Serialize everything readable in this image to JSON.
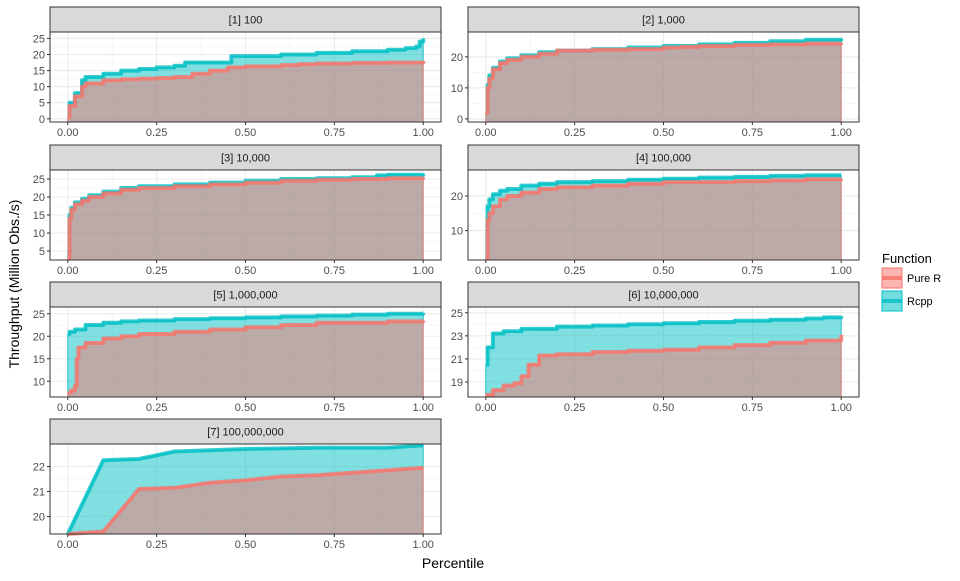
{
  "chart_data": {
    "type": "area",
    "xlabel": "Percentile",
    "ylabel": "Throughput (Million Obs./s)",
    "legend": {
      "title": "Function",
      "placement": "right",
      "entries": [
        {
          "name": "Pure R",
          "color": "#F8766D"
        },
        {
          "name": "Rcpp",
          "color": "#00BFC4"
        }
      ]
    },
    "x_ticks": [
      {
        "value": 0,
        "label": "0.00"
      },
      {
        "value": 0.25,
        "label": "0.25"
      },
      {
        "value": 0.5,
        "label": "0.50"
      },
      {
        "value": 0.75,
        "label": "0.75"
      },
      {
        "value": 1,
        "label": "1.00"
      }
    ],
    "grid": true,
    "panels": [
      {
        "title": "[1] 100",
        "xlim": [
          -0.05,
          1.05
        ],
        "ylim": [
          -1,
          27
        ],
        "y_ticks": [
          {
            "value": 0,
            "label": "0"
          },
          {
            "value": 5,
            "label": "5"
          },
          {
            "value": 10,
            "label": "10"
          },
          {
            "value": 15,
            "label": "15"
          },
          {
            "value": 20,
            "label": "20"
          },
          {
            "value": 25,
            "label": "25"
          }
        ],
        "series": [
          {
            "name": "Rcpp",
            "x": [
              0,
              0.005,
              0.02,
              0.04,
              0.05,
              0.1,
              0.15,
              0.2,
              0.25,
              0.3,
              0.33,
              0.4,
              0.45,
              0.46,
              0.5,
              0.6,
              0.7,
              0.8,
              0.9,
              0.95,
              0.98,
              0.99,
              1
            ],
            "y": [
              1,
              5,
              8,
              12,
              13,
              14,
              15,
              15.5,
              16,
              16.5,
              17.5,
              17.5,
              17.5,
              19.5,
              19.5,
              20,
              20.5,
              21,
              21.5,
              22,
              22.5,
              24,
              25
            ]
          },
          {
            "name": "Pure R",
            "x": [
              0,
              0.005,
              0.02,
              0.04,
              0.05,
              0.1,
              0.15,
              0.2,
              0.25,
              0.3,
              0.35,
              0.4,
              0.45,
              0.5,
              0.6,
              0.65,
              0.7,
              0.8,
              0.9,
              1
            ],
            "y": [
              0.5,
              4,
              7,
              10,
              11,
              12,
              12.3,
              12.5,
              12.7,
              13,
              14,
              15,
              16,
              16.3,
              16.7,
              17,
              17.2,
              17.4,
              17.5,
              18
            ]
          }
        ]
      },
      {
        "title": "[2] 1,000",
        "xlim": [
          -0.05,
          1.05
        ],
        "ylim": [
          -1,
          28
        ],
        "y_ticks": [
          {
            "value": 0,
            "label": "0"
          },
          {
            "value": 10,
            "label": "10"
          },
          {
            "value": 20,
            "label": "20"
          }
        ],
        "series": [
          {
            "name": "Rcpp",
            "x": [
              0,
              0.005,
              0.01,
              0.02,
              0.04,
              0.06,
              0.1,
              0.15,
              0.2,
              0.3,
              0.4,
              0.5,
              0.6,
              0.7,
              0.8,
              0.9,
              1
            ],
            "y": [
              2,
              11,
              14,
              16.5,
              18.5,
              19.5,
              20.5,
              21.5,
              22,
              22.5,
              23,
              23.5,
              24,
              24.5,
              25,
              25.5,
              26
            ]
          },
          {
            "name": "Pure R",
            "x": [
              0,
              0.005,
              0.01,
              0.02,
              0.04,
              0.06,
              0.1,
              0.15,
              0.2,
              0.3,
              0.4,
              0.5,
              0.55,
              0.6,
              0.7,
              0.8,
              0.9,
              1
            ],
            "y": [
              2,
              10,
              13,
              16,
              18,
              19,
              20,
              21,
              22,
              22.3,
              22.5,
              23,
              23.2,
              23.5,
              23.8,
              24,
              24.3,
              24.5
            ]
          }
        ]
      },
      {
        "title": "[3] 10,000",
        "xlim": [
          -0.05,
          1.05
        ],
        "ylim": [
          2.5,
          27.5
        ],
        "y_ticks": [
          {
            "value": 5,
            "label": "5"
          },
          {
            "value": 10,
            "label": "10"
          },
          {
            "value": 15,
            "label": "15"
          },
          {
            "value": 20,
            "label": "20"
          },
          {
            "value": 25,
            "label": "25"
          }
        ],
        "series": [
          {
            "name": "Rcpp",
            "x": [
              0,
              0.005,
              0.01,
              0.02,
              0.04,
              0.06,
              0.1,
              0.15,
              0.2,
              0.3,
              0.4,
              0.5,
              0.6,
              0.7,
              0.8,
              0.87,
              0.9,
              1
            ],
            "y": [
              5,
              15,
              17,
              18.5,
              19.5,
              20.5,
              21.5,
              22.5,
              23,
              23.5,
              24,
              24.5,
              25,
              25.2,
              25.5,
              26,
              26.2,
              26.5
            ]
          },
          {
            "name": "Pure R",
            "x": [
              0,
              0.005,
              0.01,
              0.02,
              0.04,
              0.06,
              0.1,
              0.15,
              0.2,
              0.3,
              0.4,
              0.5,
              0.6,
              0.7,
              0.8,
              0.9,
              1
            ],
            "y": [
              3,
              14,
              16.5,
              18,
              19,
              20,
              21,
              22,
              22.5,
              23,
              23.5,
              24,
              24.5,
              24.8,
              25,
              25.2,
              25.5
            ]
          }
        ]
      },
      {
        "title": "[4] 100,000",
        "xlim": [
          -0.05,
          1.05
        ],
        "ylim": [
          1.5,
          27.5
        ],
        "y_ticks": [
          {
            "value": 10,
            "label": "10"
          },
          {
            "value": 20,
            "label": "20"
          }
        ],
        "series": [
          {
            "name": "Rcpp",
            "x": [
              0,
              0.005,
              0.01,
              0.02,
              0.04,
              0.06,
              0.1,
              0.15,
              0.2,
              0.3,
              0.4,
              0.5,
              0.6,
              0.7,
              0.8,
              0.9,
              1
            ],
            "y": [
              12,
              17,
              19,
              20.5,
              21.5,
              22,
              23,
              23.5,
              24,
              24.3,
              24.7,
              25,
              25.3,
              25.5,
              25.8,
              26,
              26
            ]
          },
          {
            "name": "Pure R",
            "x": [
              0,
              0.005,
              0.01,
              0.02,
              0.04,
              0.06,
              0.1,
              0.15,
              0.2,
              0.3,
              0.4,
              0.5,
              0.6,
              0.7,
              0.8,
              0.9,
              1
            ],
            "y": [
              2,
              13,
              15,
              17,
              19,
              20,
              21,
              22,
              22.5,
              23,
              23.5,
              24,
              24,
              24.3,
              24.5,
              24.8,
              25
            ]
          }
        ]
      },
      {
        "title": "[5] 1,000,000",
        "xlim": [
          -0.05,
          1.05
        ],
        "ylim": [
          6.5,
          26.5
        ],
        "y_ticks": [
          {
            "value": 10,
            "label": "10"
          },
          {
            "value": 15,
            "label": "15"
          },
          {
            "value": 20,
            "label": "20"
          },
          {
            "value": 25,
            "label": "25"
          }
        ],
        "series": [
          {
            "name": "Rcpp",
            "x": [
              0,
              0.005,
              0.02,
              0.05,
              0.1,
              0.15,
              0.2,
              0.3,
              0.4,
              0.5,
              0.6,
              0.7,
              0.8,
              0.9,
              1
            ],
            "y": [
              20.5,
              21,
              21.5,
              22.5,
              23,
              23.3,
              23.5,
              23.8,
              24,
              24.2,
              24.4,
              24.6,
              24.8,
              25,
              25.2
            ]
          },
          {
            "name": "Pure R",
            "x": [
              0,
              0.01,
              0.02,
              0.025,
              0.03,
              0.05,
              0.1,
              0.15,
              0.2,
              0.3,
              0.4,
              0.5,
              0.6,
              0.7,
              0.8,
              0.9,
              1
            ],
            "y": [
              7.5,
              8,
              9,
              15,
              17.5,
              18.5,
              19.5,
              20,
              20.5,
              21,
              21.5,
              22,
              22.5,
              23,
              23,
              23.3,
              23.5
            ]
          }
        ]
      },
      {
        "title": "[6] 10,000,000",
        "xlim": [
          -0.05,
          1.05
        ],
        "ylim": [
          17.7,
          25.5
        ],
        "y_ticks": [
          {
            "value": 19,
            "label": "19"
          },
          {
            "value": 21,
            "label": "21"
          },
          {
            "value": 23,
            "label": "23"
          },
          {
            "value": 25,
            "label": "25"
          }
        ],
        "series": [
          {
            "name": "Rcpp",
            "x": [
              0,
              0.005,
              0.02,
              0.05,
              0.1,
              0.2,
              0.3,
              0.4,
              0.5,
              0.6,
              0.7,
              0.8,
              0.9,
              0.95,
              1
            ],
            "y": [
              20.5,
              22,
              23.2,
              23.4,
              23.6,
              23.8,
              23.9,
              24,
              24.1,
              24.2,
              24.3,
              24.4,
              24.5,
              24.6,
              24.7
            ]
          },
          {
            "name": "Pure R",
            "x": [
              0,
              0.02,
              0.05,
              0.08,
              0.1,
              0.12,
              0.15,
              0.2,
              0.3,
              0.4,
              0.5,
              0.6,
              0.7,
              0.8,
              0.9,
              1
            ],
            "y": [
              17.9,
              18.3,
              18.7,
              18.9,
              19.5,
              20.5,
              21.3,
              21.4,
              21.6,
              21.7,
              21.8,
              22,
              22.2,
              22.4,
              22.6,
              23.1
            ]
          }
        ]
      },
      {
        "title": "[7] 100,000,000",
        "xlim": [
          -0.05,
          1.05
        ],
        "ylim": [
          19.3,
          22.9
        ],
        "y_ticks": [
          {
            "value": 20,
            "label": "20"
          },
          {
            "value": 21,
            "label": "21"
          },
          {
            "value": 22,
            "label": "22"
          }
        ],
        "series": [
          {
            "name": "Rcpp",
            "x": [
              0,
              0.1,
              0.2,
              0.25,
              0.3,
              0.5,
              0.7,
              0.9,
              1
            ],
            "y": [
              19.3,
              22.25,
              22.3,
              22.45,
              22.6,
              22.7,
              22.75,
              22.75,
              22.85
            ]
          },
          {
            "name": "Pure R",
            "x": [
              0,
              0.1,
              0.2,
              0.3,
              0.4,
              0.5,
              0.6,
              0.7,
              0.8,
              0.9,
              1
            ],
            "y": [
              19.3,
              19.4,
              21.1,
              21.15,
              21.35,
              21.45,
              21.6,
              21.65,
              21.75,
              21.85,
              21.95
            ]
          }
        ]
      }
    ]
  }
}
